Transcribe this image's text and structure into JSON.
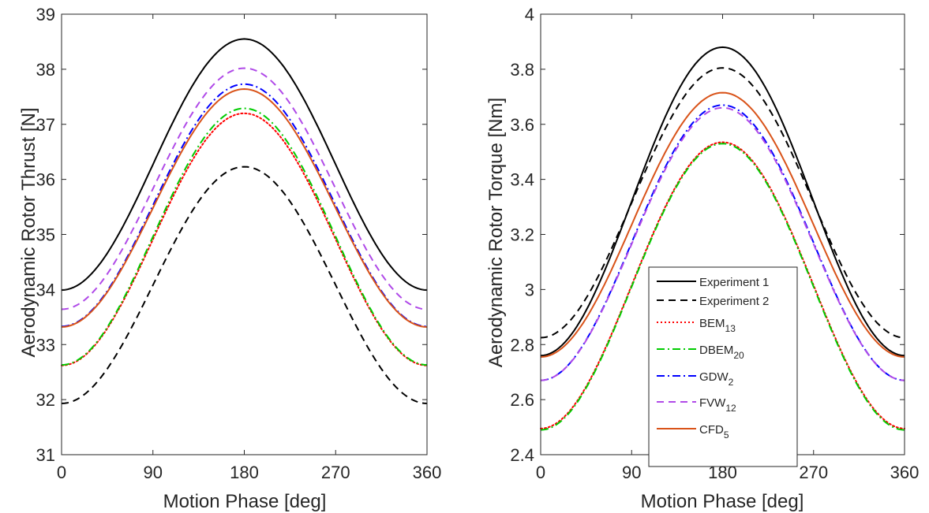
{
  "chart_data": [
    {
      "type": "line",
      "title": "",
      "xlabel": "Motion Phase [deg]",
      "ylabel": "Aerodynamic Rotor Thrust [N]",
      "xlim": [
        0,
        360
      ],
      "ylim": [
        31,
        39
      ],
      "xticks": [
        0,
        90,
        180,
        270,
        360
      ],
      "yticks": [
        31,
        32,
        33,
        34,
        35,
        36,
        37,
        38,
        39
      ],
      "grid": false,
      "series": [
        {
          "name": "Experiment 1",
          "color": "#000000",
          "style": "solid",
          "mean": 36.27,
          "amplitude": 2.28
        },
        {
          "name": "Experiment 2",
          "color": "#000000",
          "style": "dashed",
          "mean": 34.08,
          "amplitude": 2.15
        },
        {
          "name": "BEM13",
          "color": "#ff0000",
          "style": "dotted",
          "mean": 34.91,
          "amplitude": 2.29
        },
        {
          "name": "DBEM20",
          "color": "#00cc00",
          "style": "dashdot",
          "mean": 34.96,
          "amplitude": 2.33
        },
        {
          "name": "GDW2",
          "color": "#0000ff",
          "style": "dashdot",
          "mean": 35.53,
          "amplitude": 2.2
        },
        {
          "name": "FVW12",
          "color": "#b04ae8",
          "style": "dashed",
          "mean": 35.83,
          "amplitude": 2.19
        },
        {
          "name": "CFD5",
          "color": "#d95319",
          "style": "solid",
          "mean": 35.48,
          "amplitude": 2.16
        }
      ]
    },
    {
      "type": "line",
      "title": "",
      "xlabel": "Motion Phase [deg]",
      "ylabel": "Aerodynamic Rotor Torque [Nm]",
      "xlim": [
        0,
        360
      ],
      "ylim": [
        2.4,
        4.0
      ],
      "xticks": [
        0,
        90,
        180,
        270,
        360
      ],
      "yticks": [
        2.4,
        2.6,
        2.8,
        3.0,
        3.2,
        3.4,
        3.6,
        3.8,
        4.0
      ],
      "ytick_labels": [
        "2.4",
        "2.6",
        "2.8",
        "3",
        "3.2",
        "3.4",
        "3.6",
        "3.8",
        "4"
      ],
      "grid": false,
      "legend_position": "lower-center",
      "series": [
        {
          "name": "Experiment 1",
          "color": "#000000",
          "style": "solid",
          "mean": 3.32,
          "amplitude": 0.56
        },
        {
          "name": "Experiment 2",
          "color": "#000000",
          "style": "dashed",
          "mean": 3.315,
          "amplitude": 0.49
        },
        {
          "name": "BEM13",
          "color": "#ff0000",
          "style": "dotted",
          "mean": 3.015,
          "amplitude": 0.52
        },
        {
          "name": "DBEM20",
          "color": "#00cc00",
          "style": "dashdot",
          "mean": 3.01,
          "amplitude": 0.52
        },
        {
          "name": "GDW2",
          "color": "#0000ff",
          "style": "dashdot",
          "mean": 3.17,
          "amplitude": 0.5
        },
        {
          "name": "FVW12",
          "color": "#b04ae8",
          "style": "dashed",
          "mean": 3.165,
          "amplitude": 0.495
        },
        {
          "name": "CFD5",
          "color": "#d95319",
          "style": "solid",
          "mean": 3.235,
          "amplitude": 0.48
        }
      ]
    }
  ],
  "legend": {
    "entries": [
      {
        "base": "Experiment 1",
        "sub": ""
      },
      {
        "base": "Experiment 2",
        "sub": ""
      },
      {
        "base": "BEM",
        "sub": "13"
      },
      {
        "base": "DBEM",
        "sub": "20"
      },
      {
        "base": "GDW",
        "sub": "2"
      },
      {
        "base": "FVW",
        "sub": "12"
      },
      {
        "base": "CFD",
        "sub": "5"
      }
    ]
  }
}
